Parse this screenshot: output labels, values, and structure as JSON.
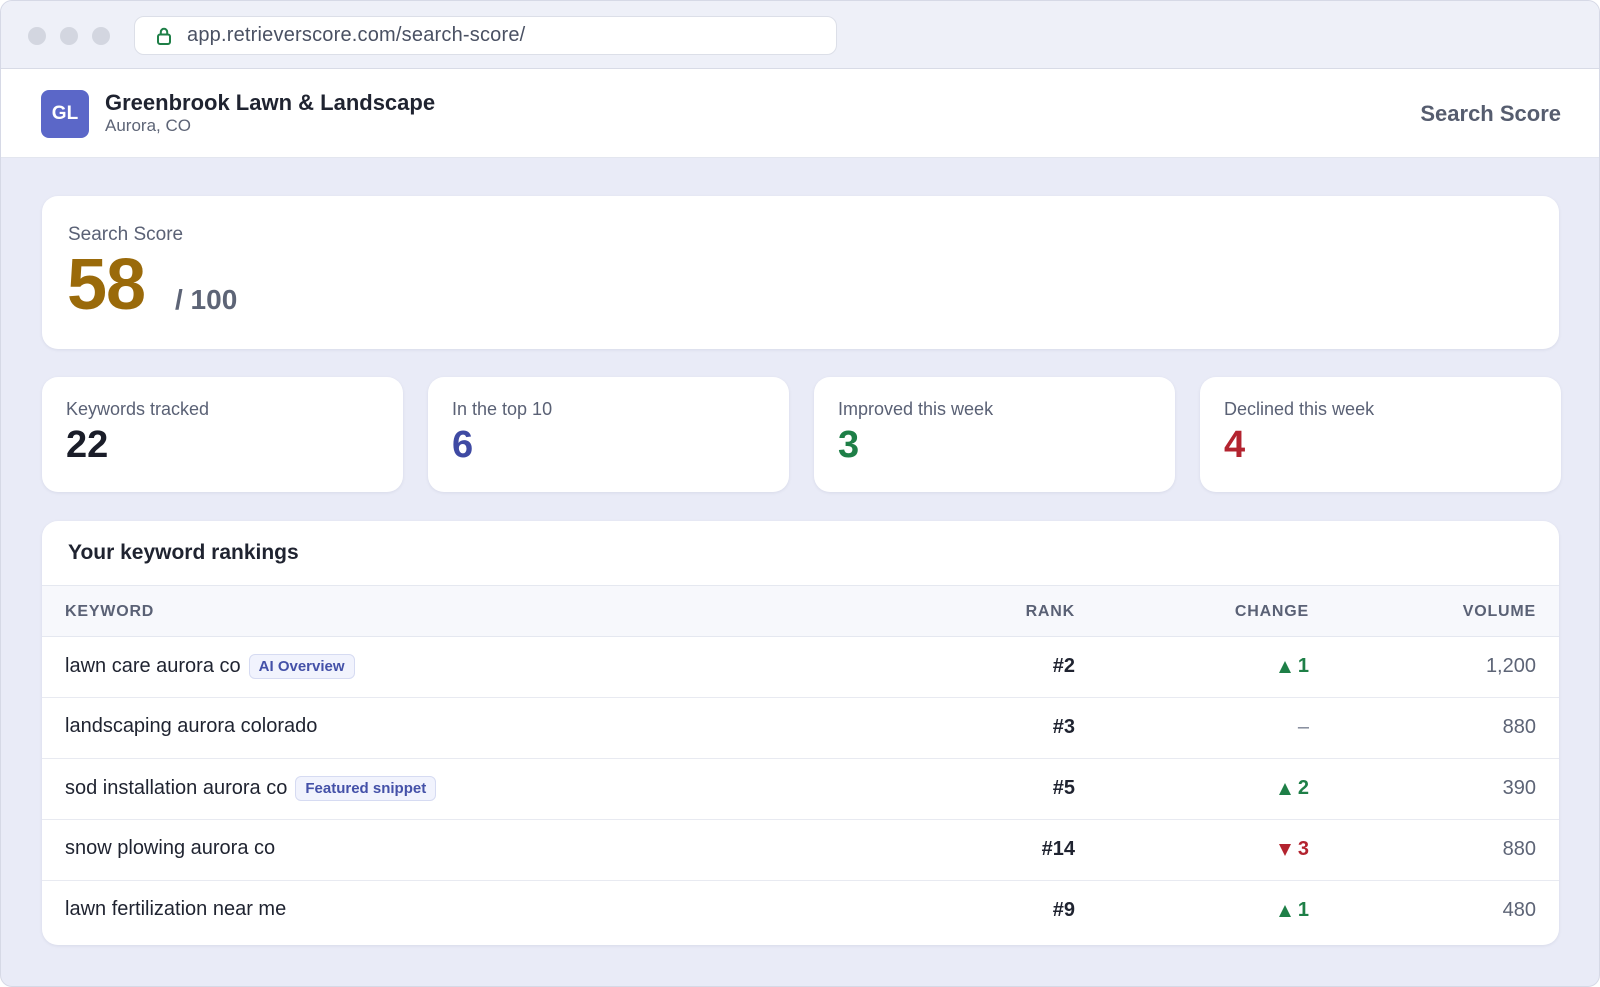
{
  "browser": {
    "url": "app.retrieverscore.com/search-score/"
  },
  "header": {
    "avatar_initials": "GL",
    "business_name": "Greenbrook Lawn & Landscape",
    "location": "Aurora, CO",
    "nav_link": "Search Score"
  },
  "score": {
    "label": "Search Score",
    "value": "58",
    "max": "/ 100",
    "color": "#9a6a0a"
  },
  "stats": [
    {
      "label": "Keywords tracked",
      "value": "22",
      "color": "#1a1d29"
    },
    {
      "label": "In the top 10",
      "value": "6",
      "color": "#3f4aa3"
    },
    {
      "label": "Improved this week",
      "value": "3",
      "color": "#1e7f47"
    },
    {
      "label": "Declined this week",
      "value": "4",
      "color": "#b3232f"
    }
  ],
  "rankings": {
    "title": "Your keyword rankings",
    "columns": {
      "keyword": "KEYWORD",
      "rank": "RANK",
      "change": "CHANGE",
      "volume": "VOLUME"
    },
    "rows": [
      {
        "keyword": "lawn care aurora co",
        "badge": "AI Overview",
        "rank": "#2",
        "change": "1",
        "direction": "up",
        "volume": "1,200"
      },
      {
        "keyword": "landscaping aurora colorado",
        "badge": "",
        "rank": "#3",
        "change": "–",
        "direction": "flat",
        "volume": "880"
      },
      {
        "keyword": "sod installation aurora co",
        "badge": "Featured snippet",
        "rank": "#5",
        "change": "2",
        "direction": "up",
        "volume": "390"
      },
      {
        "keyword": "snow plowing aurora co",
        "badge": "",
        "rank": "#14",
        "change": "3",
        "direction": "down",
        "volume": "880"
      },
      {
        "keyword": "lawn fertilization near me",
        "badge": "",
        "rank": "#9",
        "change": "1",
        "direction": "up",
        "volume": "480"
      }
    ]
  }
}
